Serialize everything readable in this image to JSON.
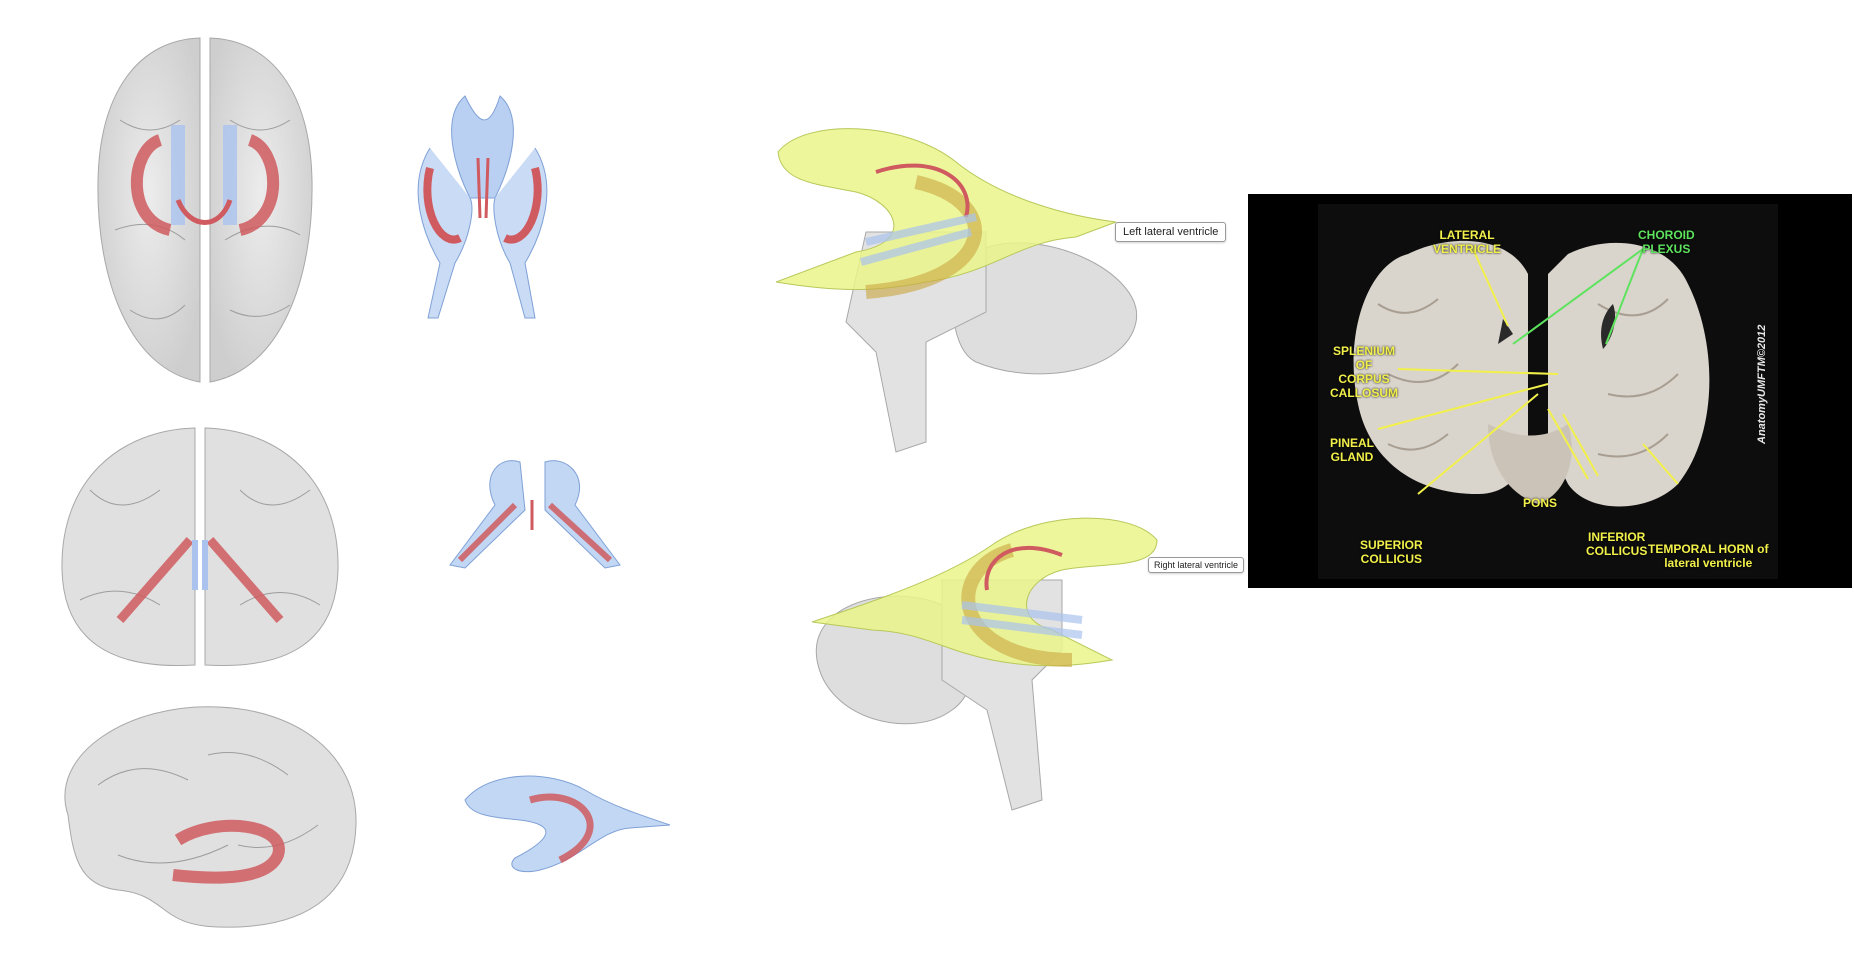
{
  "views": {
    "left_tag": "Left lateral ventricle",
    "right_tag": "Right lateral ventricle"
  },
  "photo": {
    "labels": {
      "lateral_ventricle": "LATERAL\nVENTRICLE",
      "choroid_plexus": "CHOROID\nPLEXUS",
      "splenium": "SPLENIUM\nOF\nCORPUS\nCALLOSUM",
      "pineal": "PINEAL\nGLAND",
      "pons": "PONS",
      "superior_colliculus": "SUPERIOR\nCOLLICUS",
      "inferior_colliculus": "INFERIOR\nCOLLICUS",
      "temporal_horn": "TEMPORAL HORN of\nlateral ventricle"
    },
    "copyright": "AnatomyUMFTM©2012"
  },
  "colors": {
    "ventricle_blue": "#b9d0f2",
    "choroid_red": "#cf5a5f",
    "corpus_yellow": "#eaf58a",
    "brain_gray": "#cfcfcf",
    "label_yellow": "#f2f04a",
    "label_green": "#5ee35e"
  }
}
